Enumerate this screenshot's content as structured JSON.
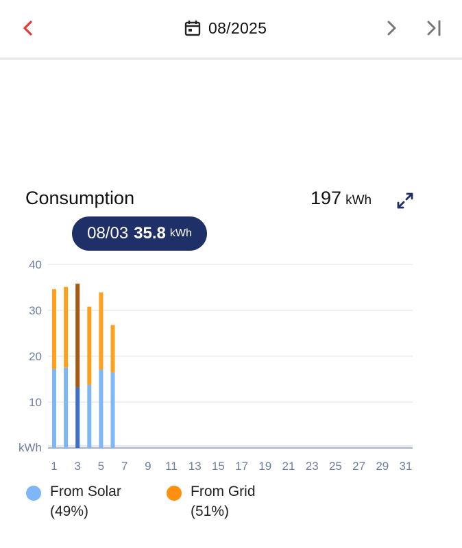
{
  "header": {
    "date": "08/2025",
    "back_icon": "chevron-left-icon",
    "calendar_icon": "calendar-icon",
    "next_icon": "chevron-right-icon",
    "last_icon": "skip-to-last-icon",
    "back_color": "#e53935"
  },
  "summary": {
    "title": "Consumption",
    "total_value": "197",
    "total_unit": "kWh",
    "expand_icon": "expand-icon"
  },
  "tooltip": {
    "date": "08/03",
    "value": "35.8",
    "unit": "kWh"
  },
  "legend": [
    {
      "label": "From Solar",
      "percent": "(49%)",
      "color": "#7eb6f6"
    },
    {
      "label": "From Grid",
      "percent": "(51%)",
      "color": "#ff8f0f"
    }
  ],
  "chart_data": {
    "type": "bar",
    "stacked": true,
    "y_unit": "kWh",
    "ylim": [
      0,
      40
    ],
    "y_ticks": [
      10,
      20,
      30,
      40
    ],
    "categories": [
      1,
      2,
      3,
      4,
      5,
      6,
      7,
      8,
      9,
      10,
      11,
      12,
      13,
      14,
      15,
      16,
      17,
      18,
      19,
      20,
      21,
      22,
      23,
      24,
      25,
      26,
      27,
      28,
      29,
      30,
      31
    ],
    "x_tick_labels": [
      "1",
      "3",
      "5",
      "7",
      "9",
      "11",
      "13",
      "15",
      "17",
      "19",
      "21",
      "23",
      "25",
      "27",
      "29",
      "31"
    ],
    "selected_day": 3,
    "series": [
      {
        "name": "From Solar",
        "color": "#7eb6f6",
        "selected_color": "#3e6fc4",
        "values": [
          17.2,
          17.5,
          13.2,
          13.8,
          17.1,
          16.5,
          0,
          0,
          0,
          0,
          0,
          0,
          0,
          0,
          0,
          0,
          0,
          0,
          0,
          0,
          0,
          0,
          0,
          0,
          0,
          0,
          0,
          0,
          0,
          0,
          0
        ]
      },
      {
        "name": "From Grid",
        "color": "#ffa01c",
        "selected_color": "#a35a14",
        "values": [
          17.4,
          17.6,
          22.6,
          17.0,
          16.8,
          10.3,
          0,
          0,
          0,
          0,
          0,
          0,
          0,
          0,
          0,
          0,
          0,
          0,
          0,
          0,
          0,
          0,
          0,
          0,
          0,
          0,
          0,
          0,
          0,
          0,
          0
        ]
      }
    ],
    "grid": true
  }
}
